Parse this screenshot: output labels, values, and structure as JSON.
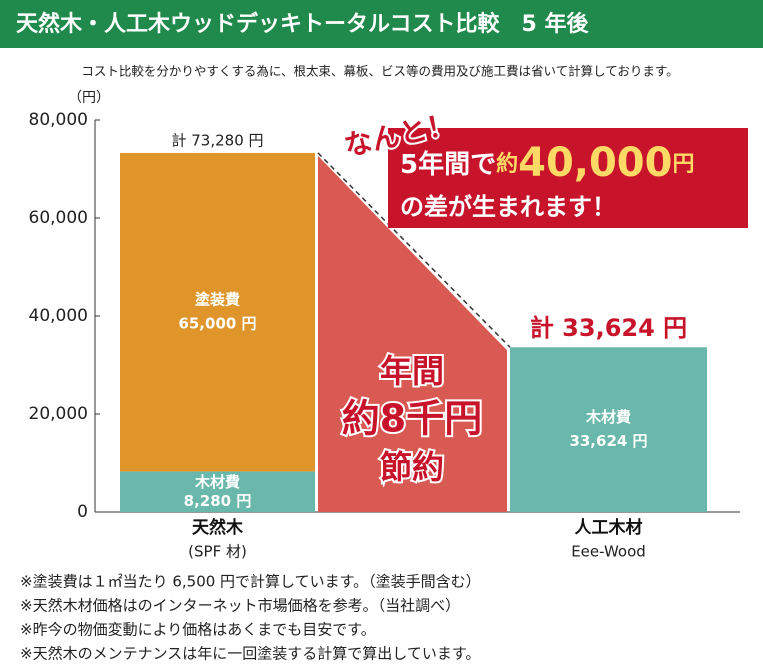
{
  "chart_data": {
    "type": "stacked-bar",
    "title": "天然木・人工木ウッドデッキトータルコスト比較　5 年後",
    "subtitle": "コスト比較を分かりやすくする為に、根太束、幕板、ビス等の費用及び施工費は省いて計算しております。",
    "y_label": "（円）",
    "categories": [
      "天然木",
      "人工木材"
    ],
    "category_notes": [
      "(SPF 材)",
      "Eee-Wood"
    ],
    "series": [
      {
        "name": "木材費",
        "color": "#69b8ab",
        "values": [
          8280,
          33624
        ],
        "value_labels": [
          "8,280 円",
          "33,624 円"
        ]
      },
      {
        "name": "塗装費",
        "color": "#e0952a",
        "values": [
          65000,
          null
        ],
        "value_labels": [
          "65,000 円",
          null
        ]
      }
    ],
    "totals": [
      73280,
      33624
    ],
    "total_labels": [
      "計 73,280 円",
      "計 33,624 円"
    ],
    "ylim": [
      0,
      80000
    ],
    "yticks": [
      0,
      {
        "value": 20000,
        "label": "20,000"
      },
      {
        "value": 40000,
        "label": "40,000"
      },
      {
        "value": 60000,
        "label": "60,000"
      },
      {
        "value": 80000,
        "label": "80,000"
      }
    ],
    "saving_label": [
      "年間",
      "約8千円",
      "節約"
    ],
    "callout": {
      "exclaim": "なんと！",
      "line1": [
        "5年間で",
        "約",
        "40,000",
        "円"
      ],
      "line2": "の差が生まれます！"
    },
    "footnotes": [
      "※塗装費は１㎡当たり 6,500 円で計算しています。（塗装手間含む）",
      "※天然木材価格はのインターネット市場価格を参考。（当社調べ）",
      "※昨今の物価変動により価格はあくまでも目安です。",
      "※天然木のメンテナンスは年に一回塗装する計算で算出しています。"
    ]
  }
}
